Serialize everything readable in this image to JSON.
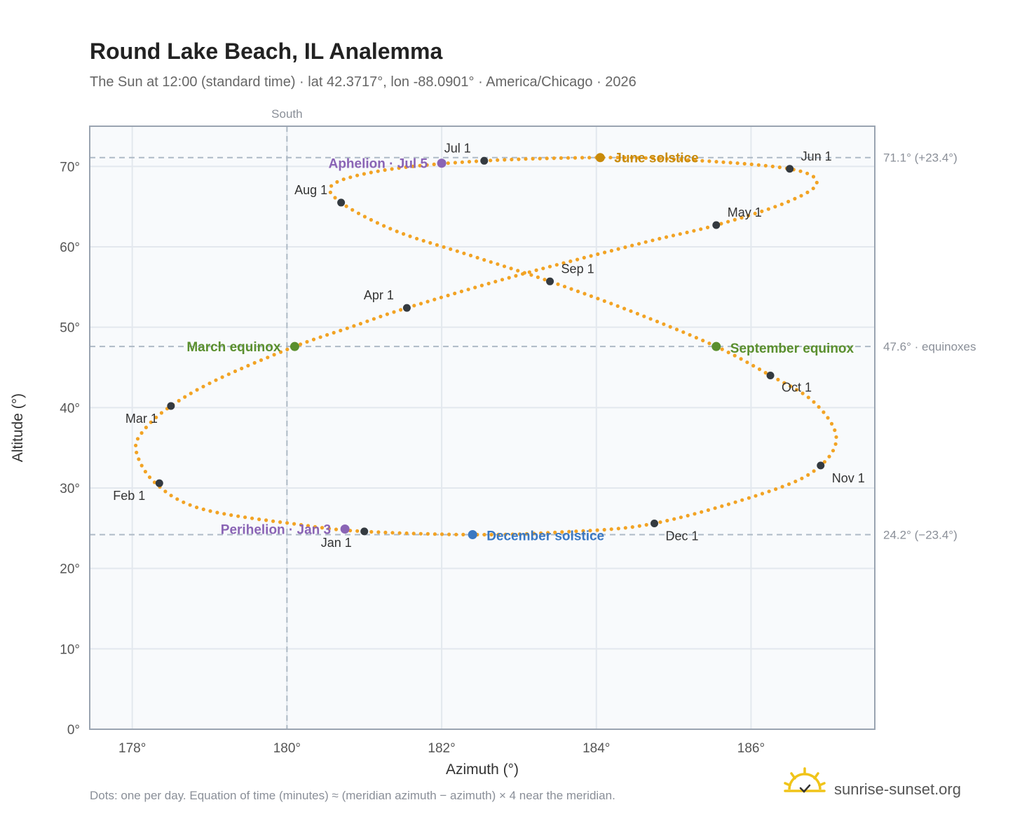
{
  "header": {
    "title": "Round Lake Beach, IL Analemma",
    "subtitle": "The Sun at 12:00 (standard time) · lat 42.3717°, lon -88.0901° · America/Chicago · 2026"
  },
  "footer": {
    "note": "Dots: one per day. Equation of time (minutes) ≈ (meridian azimuth − azimuth) × 4 near the meridian.",
    "brand": "sunrise-sunset.org",
    "brand_icon": "sun-logo-icon"
  },
  "colors": {
    "path": "#f2a324",
    "month_marker": "#343a40",
    "equinox": "#5a8f2e",
    "june_solstice": "#c88a0a",
    "december_solstice": "#3b78c2",
    "apsis": "#8a64b5",
    "reference_line": "#aebac6",
    "plot_background": "#f8fafc",
    "grid": "#e3e8ee",
    "frame": "#9aa4b1"
  },
  "chart_data": {
    "type": "scatter",
    "xlabel": "Azimuth (°)",
    "ylabel": "Altitude (°)",
    "xlim": [
      177.45,
      187.6
    ],
    "ylim": [
      0,
      75
    ],
    "x_ticks": [
      178,
      180,
      182,
      184,
      186
    ],
    "x_tick_labels": [
      "178°",
      "180°",
      "182°",
      "184°",
      "186°"
    ],
    "y_ticks": [
      0,
      10,
      20,
      30,
      40,
      50,
      60,
      70
    ],
    "y_tick_labels": [
      "0°",
      "10°",
      "20°",
      "30°",
      "40°",
      "50°",
      "60°",
      "70°"
    ],
    "grid": true,
    "meridian": {
      "azimuth": 180,
      "label": "South"
    },
    "reference_lines": [
      {
        "altitude": 71.1,
        "label": "71.1° (+23.4°)"
      },
      {
        "altitude": 47.6,
        "label": "47.6° · equinoxes"
      },
      {
        "altitude": 24.2,
        "label": "24.2° (−23.4°)"
      }
    ],
    "path_anchors": [
      {
        "azimuth": 181.0,
        "altitude": 24.6
      },
      {
        "azimuth": 180.2,
        "altitude": 25.4
      },
      {
        "azimuth": 178.9,
        "altitude": 27.4
      },
      {
        "azimuth": 178.3,
        "altitude": 30.6
      },
      {
        "azimuth": 178.05,
        "altitude": 34.6
      },
      {
        "azimuth": 178.15,
        "altitude": 37.2
      },
      {
        "azimuth": 178.5,
        "altitude": 40.2
      },
      {
        "azimuth": 179.1,
        "altitude": 43.5
      },
      {
        "azimuth": 180.1,
        "altitude": 47.6
      },
      {
        "azimuth": 180.85,
        "altitude": 50.1
      },
      {
        "azimuth": 181.55,
        "altitude": 52.4
      },
      {
        "azimuth": 183.0,
        "altitude": 56.5
      },
      {
        "azimuth": 184.6,
        "altitude": 60.5
      },
      {
        "azimuth": 185.55,
        "altitude": 62.7
      },
      {
        "azimuth": 186.45,
        "altitude": 65.5
      },
      {
        "azimuth": 186.85,
        "altitude": 67.9
      },
      {
        "azimuth": 186.5,
        "altitude": 69.7
      },
      {
        "azimuth": 185.2,
        "altitude": 70.8
      },
      {
        "azimuth": 184.05,
        "altitude": 71.1
      },
      {
        "azimuth": 182.55,
        "altitude": 70.7
      },
      {
        "azimuth": 181.3,
        "altitude": 69.6
      },
      {
        "azimuth": 180.6,
        "altitude": 67.8
      },
      {
        "azimuth": 180.7,
        "altitude": 65.5
      },
      {
        "azimuth": 181.4,
        "altitude": 62.0
      },
      {
        "azimuth": 182.35,
        "altitude": 59.0
      },
      {
        "azimuth": 183.4,
        "altitude": 55.7
      },
      {
        "azimuth": 184.5,
        "altitude": 51.8
      },
      {
        "azimuth": 185.55,
        "altitude": 47.6
      },
      {
        "azimuth": 186.25,
        "altitude": 44.0
      },
      {
        "azimuth": 186.8,
        "altitude": 40.8
      },
      {
        "azimuth": 187.1,
        "altitude": 36.5
      },
      {
        "azimuth": 186.9,
        "altitude": 32.8
      },
      {
        "azimuth": 186.3,
        "altitude": 29.8
      },
      {
        "azimuth": 184.75,
        "altitude": 25.6
      },
      {
        "azimuth": 183.5,
        "altitude": 24.5
      },
      {
        "azimuth": 182.4,
        "altitude": 24.2
      },
      {
        "azimuth": 181.0,
        "altitude": 24.6
      }
    ],
    "month_markers": [
      {
        "label": "Jan 1",
        "azimuth": 181.0,
        "altitude": 24.6,
        "anchor": "middle",
        "dx": -40,
        "dy": 22
      },
      {
        "label": "Feb 1",
        "azimuth": 178.35,
        "altitude": 30.6,
        "anchor": "middle",
        "dx": -43,
        "dy": 24
      },
      {
        "label": "Mar 1",
        "azimuth": 178.5,
        "altitude": 40.2,
        "anchor": "middle",
        "dx": -42,
        "dy": 24
      },
      {
        "label": "Apr 1",
        "azimuth": 181.55,
        "altitude": 52.4,
        "anchor": "middle",
        "dx": -40,
        "dy": -12
      },
      {
        "label": "May 1",
        "azimuth": 185.55,
        "altitude": 62.7,
        "anchor": "start",
        "dx": 16,
        "dy": -12
      },
      {
        "label": "Jun 1",
        "azimuth": 186.5,
        "altitude": 69.7,
        "anchor": "start",
        "dx": 16,
        "dy": -12
      },
      {
        "label": "Jul 1",
        "azimuth": 182.55,
        "altitude": 70.7,
        "anchor": "middle",
        "dx": -38,
        "dy": -12
      },
      {
        "label": "Aug 1",
        "azimuth": 180.7,
        "altitude": 65.5,
        "anchor": "middle",
        "dx": -43,
        "dy": -12
      },
      {
        "label": "Sep 1",
        "azimuth": 183.4,
        "altitude": 55.7,
        "anchor": "start",
        "dx": 16,
        "dy": -12
      },
      {
        "label": "Oct 1",
        "azimuth": 186.25,
        "altitude": 44.0,
        "anchor": "start",
        "dx": 16,
        "dy": 23
      },
      {
        "label": "Nov 1",
        "azimuth": 186.9,
        "altitude": 32.8,
        "anchor": "start",
        "dx": 16,
        "dy": 24
      },
      {
        "label": "Dec 1",
        "azimuth": 184.75,
        "altitude": 25.6,
        "anchor": "start",
        "dx": 16,
        "dy": 24
      }
    ],
    "events": [
      {
        "label": "March equinox",
        "azimuth": 180.1,
        "altitude": 47.6,
        "color": "#5a8f2e",
        "anchor": "end",
        "dx": -20,
        "dy": 7
      },
      {
        "label": "June solstice",
        "azimuth": 184.05,
        "altitude": 71.1,
        "color": "#c88a0a",
        "anchor": "start",
        "dx": 20,
        "dy": 7
      },
      {
        "label": "September equinox",
        "azimuth": 185.55,
        "altitude": 47.6,
        "color": "#5a8f2e",
        "anchor": "start",
        "dx": 20,
        "dy": 9
      },
      {
        "label": "December solstice",
        "azimuth": 182.4,
        "altitude": 24.2,
        "color": "#3b78c2",
        "anchor": "start",
        "dx": 20,
        "dy": 8
      },
      {
        "label": "Perihelion · Jan 3",
        "azimuth": 180.75,
        "altitude": 24.9,
        "color": "#8a64b5",
        "anchor": "end",
        "dx": -20,
        "dy": 7
      },
      {
        "label": "Aphelion · Jul 5",
        "azimuth": 182.0,
        "altitude": 70.4,
        "color": "#8a64b5",
        "anchor": "end",
        "dx": -20,
        "dy": 7
      }
    ]
  }
}
